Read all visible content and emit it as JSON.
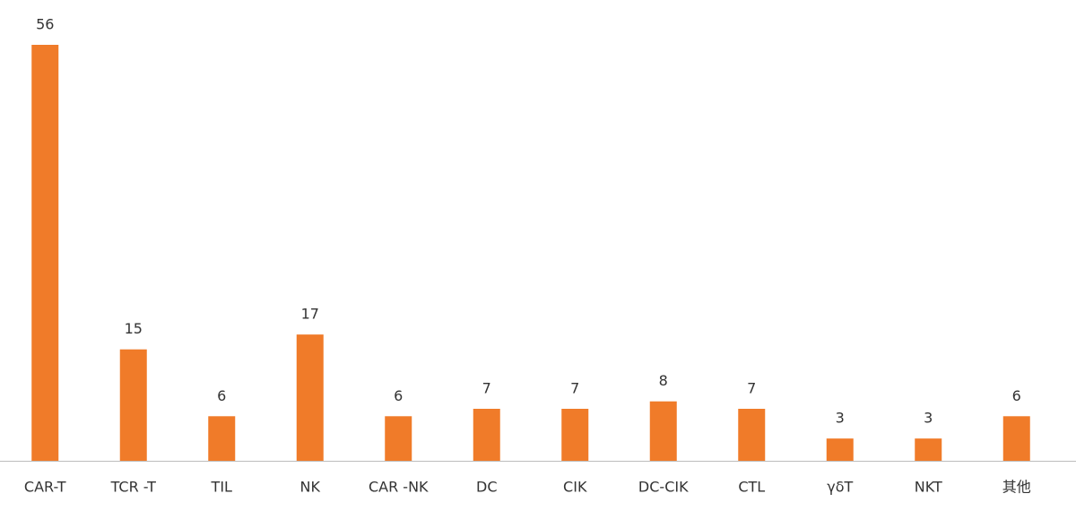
{
  "chart_data": {
    "type": "bar",
    "categories": [
      "CAR-T",
      "TCR -T",
      "TIL",
      "NK",
      "CAR -NK",
      "DC",
      "CIK",
      "DC-CIK",
      "CTL",
      "γδT",
      "NKT",
      "其他"
    ],
    "values": [
      56,
      15,
      6,
      17,
      6,
      7,
      7,
      8,
      7,
      3,
      3,
      6
    ],
    "color": "#f07b29",
    "ylim": [
      0,
      56
    ]
  }
}
